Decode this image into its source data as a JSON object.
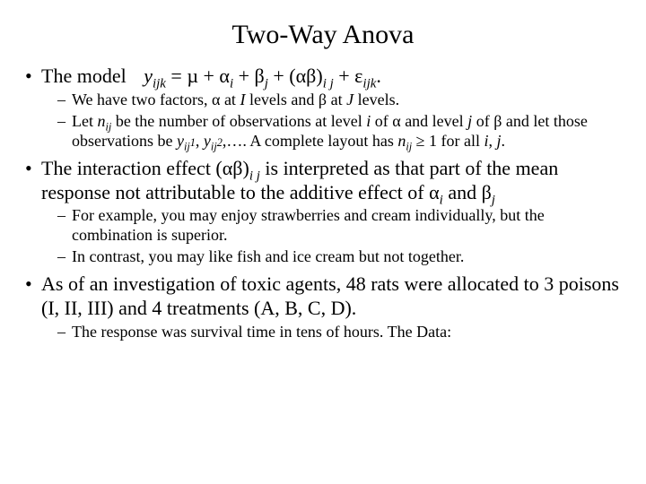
{
  "title": "Two-Way Anova",
  "bullets": {
    "b1": {
      "prefix": "The model",
      "eq": {
        "y": "y",
        "y_sub": "ijk",
        "eq1": " = µ + ",
        "alpha": "α",
        "alpha_sub": "i",
        "eq2": " + ",
        "beta": "β",
        "beta_sub": "j",
        "eq3": " + (",
        "ab": "αβ",
        "ab_close": ")",
        "ab_sub": "i j",
        "eq4": " + ",
        "eps": "ε",
        "eps_sub": "ijk",
        "dot": "."
      },
      "sub1": {
        "t1": "We have two factors, ",
        "alpha": "α",
        "t2": " at ",
        "I": "I",
        "t3": " levels and ",
        "beta": "β",
        "t4": " at ",
        "J": "J",
        "t5": " levels."
      },
      "sub2": {
        "t1": "Let ",
        "n": "n",
        "n_sub": "ij",
        "t2": " be the number of observations at level ",
        "i": "i",
        "t3": " of ",
        "alpha": "α",
        "t4": " and level ",
        "j": "j",
        "t5": " of ",
        "beta": "β",
        "t6": " and let those observations be ",
        "y1": "y",
        "y1_sub": "ij",
        "y1_sup": "1",
        "comma1": ", ",
        "y2": "y",
        "y2_sub": "ij",
        "y2_sup": "2",
        "t7": ",…. A complete layout has ",
        "n2": "n",
        "n2_sub": "ij",
        "ge": " ≥ 1 for all ",
        "i2": "i",
        "comma2": ", ",
        "j2": "j",
        "dot": "."
      }
    },
    "b2": {
      "t1": "The interaction effect (",
      "ab": "αβ",
      "close": ")",
      "ab_sub": "i j",
      "t2": " is interpreted as that part of the mean response not attributable to the additive effect of ",
      "alpha": "α",
      "alpha_sub": "i",
      "and": " and ",
      "beta": "β",
      "beta_sub": "j",
      "sub1": "For example, you may enjoy strawberries and cream individually, but the combination is superior.",
      "sub2": "In contrast, you may like fish and ice cream but not together."
    },
    "b3": {
      "t1": "As of an investigation of toxic agents, 48 rats were allocated to 3 poisons (I, II, III) and 4 treatments (A, B, C, D).",
      "sub1": "The response was survival time in tens of hours. The Data:"
    }
  },
  "colors": {
    "text": "#000000",
    "background": "#ffffff"
  },
  "typography": {
    "title_fontsize": 30,
    "body_fontsize": 22,
    "sub_fontsize": 18,
    "family": "Times New Roman"
  }
}
